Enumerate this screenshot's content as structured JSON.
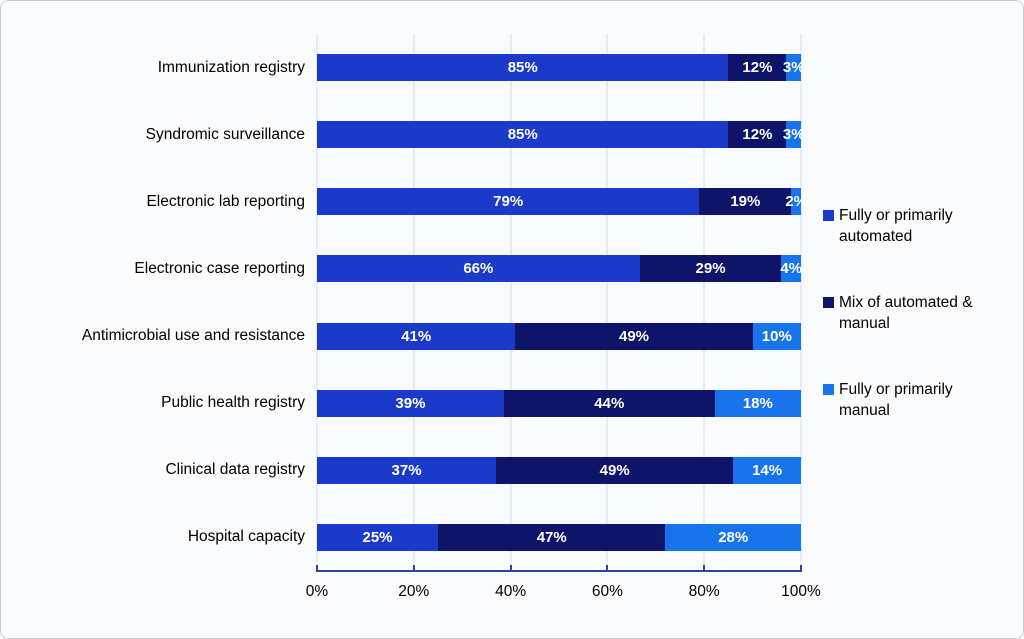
{
  "chart_data": {
    "type": "bar",
    "orientation": "horizontal",
    "stacked": true,
    "title": "",
    "xlabel": "",
    "ylabel": "",
    "categories": [
      "Immunization registry",
      "Syndromic surveillance",
      "Electronic lab reporting",
      "Electronic case reporting",
      "Antimicrobial use and resistance",
      "Public health registry",
      "Clinical data registry",
      "Hospital capacity"
    ],
    "series": [
      {
        "name": "Fully or primarily automated",
        "color": "#1c3ac9",
        "values": [
          85,
          85,
          79,
          66,
          41,
          39,
          37,
          25
        ]
      },
      {
        "name": "Mix of automated & manual",
        "color": "#0e1468",
        "values": [
          12,
          12,
          19,
          29,
          49,
          44,
          49,
          47
        ]
      },
      {
        "name": "Fully or primarily manual",
        "color": "#1874ea",
        "values": [
          3,
          3,
          2,
          4,
          10,
          18,
          14,
          28
        ]
      }
    ],
    "value_suffix": "%",
    "data_labels": "inside, white, bold",
    "xlim": [
      0,
      100
    ],
    "x_tick_labels": [
      "0%",
      "20%",
      "40%",
      "60%",
      "80%",
      "100%"
    ],
    "grid": "vertical gridlines only",
    "legend_position": "right"
  },
  "legend": {
    "items": [
      {
        "label": "Fully or primarily automated",
        "color": "#1c3ac9"
      },
      {
        "label": "Mix of automated & manual",
        "color": "#0e1468"
      },
      {
        "label": "Fully or primarily manual",
        "color": "#1874ea"
      }
    ]
  },
  "colors": {
    "background": "#fafbfd",
    "frame_border": "#c8cdd4",
    "gridline": "#d9dbde",
    "axis_line": "#2e429e",
    "category_text": "#000000",
    "bar_label_text": "#ffffff"
  }
}
